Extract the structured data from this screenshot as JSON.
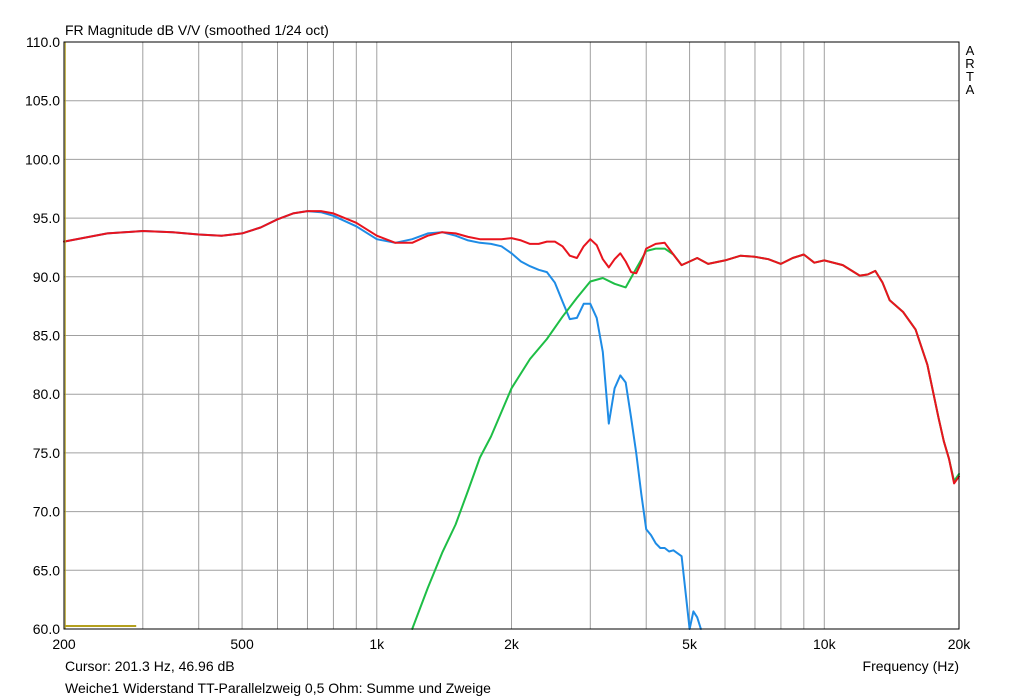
{
  "title": "FR Magnitude dB V/V (smoothed 1/24 oct)",
  "brand": [
    "A",
    "R",
    "T",
    "A"
  ],
  "cursor_readout": "Cursor: 201.3 Hz, 46.96 dB",
  "caption": "Weiche1 Widerstand TT-Parallelzweig 0,5 Ohm: Summe und Zweige",
  "colors": {
    "sum": "#e8141e",
    "woofer": "#1e8ce6",
    "tweeter": "#1ebe46",
    "cursor": "#b4a01e",
    "grid": "#a0a0a0"
  },
  "chart_data": {
    "type": "line",
    "title": "FR Magnitude dB V/V (smoothed 1/24 oct)",
    "xlabel": "Frequency (Hz)",
    "ylabel": "",
    "xscale": "log",
    "xlim": [
      200,
      20000
    ],
    "ylim": [
      60,
      110
    ],
    "xticks": [
      200,
      500,
      1000,
      2000,
      5000,
      10000,
      20000
    ],
    "xtick_labels": [
      "200",
      "500",
      "1k",
      "2k",
      "5k",
      "10k",
      "20k"
    ],
    "yticks": [
      60,
      65,
      70,
      75,
      80,
      85,
      90,
      95,
      100,
      105,
      110
    ],
    "ytick_labels": [
      "60.0",
      "65.0",
      "70.0",
      "75.0",
      "80.0",
      "85.0",
      "90.0",
      "95.0",
      "100.0",
      "105.0",
      "110.0"
    ],
    "grid": true,
    "cursor": {
      "x": 201.3,
      "y": 46.96
    },
    "series": [
      {
        "key": "woofer",
        "color": "#1e8ce6",
        "x": [
          200,
          250,
          300,
          350,
          400,
          450,
          500,
          550,
          600,
          650,
          700,
          750,
          800,
          900,
          1000,
          1100,
          1200,
          1300,
          1400,
          1500,
          1600,
          1700,
          1800,
          1900,
          2000,
          2100,
          2200,
          2300,
          2400,
          2500,
          2600,
          2700,
          2800,
          2900,
          3000,
          3100,
          3200,
          3300,
          3400,
          3500,
          3600,
          3700,
          3800,
          3900,
          4000,
          4100,
          4200,
          4300,
          4400,
          4500,
          4600,
          4800,
          5000,
          5100,
          5200,
          5300
        ],
        "y": [
          93.0,
          93.7,
          93.9,
          93.8,
          93.6,
          93.5,
          93.7,
          94.2,
          94.9,
          95.4,
          95.6,
          95.5,
          95.2,
          94.3,
          93.2,
          92.9,
          93.2,
          93.7,
          93.8,
          93.5,
          93.1,
          92.9,
          92.8,
          92.6,
          92.0,
          91.3,
          90.9,
          90.6,
          90.4,
          89.5,
          87.9,
          86.4,
          86.5,
          87.7,
          87.7,
          86.5,
          83.6,
          77.5,
          80.5,
          81.6,
          81.0,
          78.0,
          75.0,
          71.5,
          68.5,
          68.0,
          67.3,
          66.9,
          66.9,
          66.6,
          66.7,
          66.2,
          60.0,
          61.5,
          61.0,
          60.0
        ]
      },
      {
        "key": "tweeter",
        "color": "#1ebe46",
        "x": [
          1200,
          1300,
          1400,
          1500,
          1600,
          1700,
          1800,
          2000,
          2200,
          2400,
          2600,
          2800,
          3000,
          3200,
          3400,
          3600,
          3800,
          4000,
          4200,
          4400,
          4600,
          4800,
          5000,
          5200,
          5500,
          6000,
          6500,
          7000,
          7500,
          8000,
          8500,
          9000,
          9500,
          10000,
          11000,
          12000,
          12500,
          13000,
          13500,
          14000,
          15000,
          16000,
          17000,
          18000,
          18500,
          19000,
          19500,
          20000
        ],
        "y": [
          60.0,
          63.5,
          66.5,
          68.9,
          71.8,
          74.6,
          76.4,
          80.5,
          83.0,
          84.7,
          86.6,
          88.2,
          89.6,
          89.9,
          89.4,
          89.1,
          90.7,
          92.2,
          92.4,
          92.4,
          91.9,
          91.0,
          91.3,
          91.6,
          91.1,
          91.4,
          91.8,
          91.7,
          91.5,
          91.1,
          91.6,
          91.9,
          91.2,
          91.4,
          91.0,
          90.1,
          90.2,
          90.5,
          89.5,
          88.0,
          87.0,
          85.5,
          82.5,
          78.0,
          76.0,
          74.5,
          72.6,
          73.2
        ]
      },
      {
        "key": "sum",
        "color": "#e8141e",
        "x": [
          200,
          250,
          300,
          350,
          400,
          450,
          500,
          550,
          600,
          650,
          700,
          750,
          800,
          900,
          1000,
          1100,
          1200,
          1300,
          1400,
          1500,
          1600,
          1700,
          1800,
          1900,
          2000,
          2100,
          2200,
          2300,
          2400,
          2500,
          2600,
          2700,
          2800,
          2900,
          3000,
          3100,
          3200,
          3300,
          3400,
          3500,
          3600,
          3700,
          3800,
          3900,
          4000,
          4200,
          4400,
          4600,
          4800,
          5000,
          5200,
          5500,
          6000,
          6500,
          7000,
          7500,
          8000,
          8500,
          9000,
          9500,
          10000,
          11000,
          12000,
          12500,
          13000,
          13500,
          14000,
          15000,
          16000,
          17000,
          18000,
          18500,
          19000,
          19500,
          20000
        ],
        "y": [
          93.0,
          93.7,
          93.9,
          93.8,
          93.6,
          93.5,
          93.7,
          94.2,
          94.9,
          95.4,
          95.6,
          95.6,
          95.4,
          94.6,
          93.5,
          92.9,
          92.9,
          93.5,
          93.8,
          93.7,
          93.4,
          93.2,
          93.2,
          93.2,
          93.3,
          93.1,
          92.8,
          92.8,
          93.0,
          93.0,
          92.6,
          91.8,
          91.6,
          92.6,
          93.2,
          92.7,
          91.5,
          90.8,
          91.5,
          92.0,
          91.3,
          90.4,
          90.3,
          91.2,
          92.4,
          92.8,
          92.9,
          91.9,
          91.0,
          91.3,
          91.6,
          91.1,
          91.4,
          91.8,
          91.7,
          91.5,
          91.1,
          91.6,
          91.9,
          91.2,
          91.4,
          91.0,
          90.1,
          90.2,
          90.5,
          89.5,
          88.0,
          87.0,
          85.5,
          82.5,
          78.0,
          76.0,
          74.5,
          72.4,
          73.0
        ]
      }
    ]
  }
}
